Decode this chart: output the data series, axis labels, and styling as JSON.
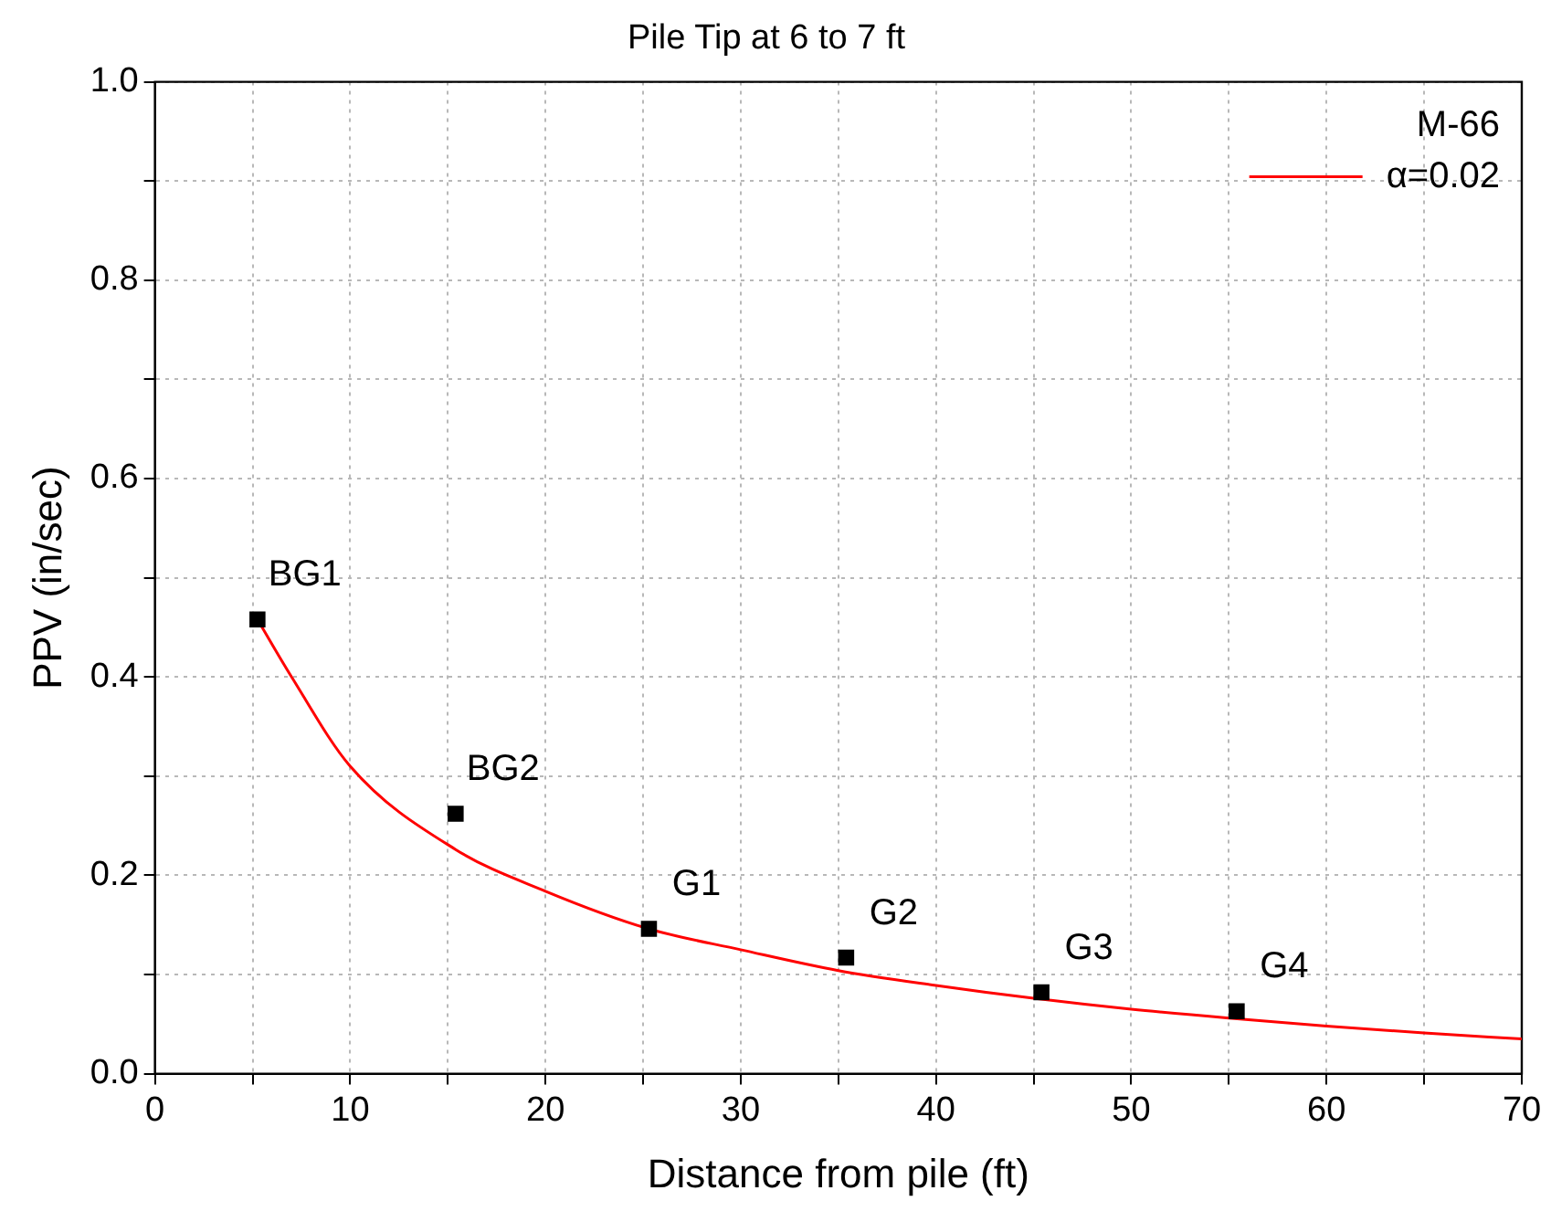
{
  "chart_data": {
    "type": "scatter",
    "title": "Pile Tip at 6 to 7 ft",
    "xlabel": "Distance from pile (ft)",
    "ylabel": "PPV (in/sec)",
    "legend_title": "M-66",
    "legend": "top right",
    "grid": true,
    "marker": "square",
    "xlim": [
      0,
      70
    ],
    "ylim": [
      0,
      1
    ],
    "xticks": [
      0,
      {
        "value": 5,
        "label": null
      },
      10,
      {
        "value": 15,
        "label": null
      },
      20,
      {
        "value": 25,
        "label": null
      },
      30,
      {
        "value": 35,
        "label": null
      },
      40,
      {
        "value": 45,
        "label": null
      },
      50,
      {
        "value": 55,
        "label": null
      },
      60,
      {
        "value": 65,
        "label": null
      },
      70
    ],
    "yticks": [
      {
        "value": 0,
        "label": "0.0"
      },
      {
        "value": 0.1,
        "label": null
      },
      {
        "value": 0.2,
        "label": "0.2"
      },
      {
        "value": 0.3,
        "label": null
      },
      {
        "value": 0.4,
        "label": "0.4"
      },
      {
        "value": 0.5,
        "label": null
      },
      {
        "value": 0.6,
        "label": "0.6"
      },
      {
        "value": 0.7,
        "label": null
      },
      {
        "value": 0.8,
        "label": "0.8"
      },
      {
        "value": 0.9,
        "label": null
      },
      {
        "value": 1,
        "label": "1.0"
      }
    ],
    "series": [
      {
        "type": "scatter",
        "color": "#000000",
        "x": [
          5.25,
          15.4,
          25.3,
          35.4,
          45.4,
          55.4
        ],
        "values": [
          0.458,
          0.262,
          0.146,
          0.117,
          0.082,
          0.063
        ]
      },
      {
        "type": "line",
        "name": "α=0.02",
        "color": "#ff0000",
        "marker": "none",
        "x": [
          5.25,
          7,
          10,
          15.4,
          20,
          25.3,
          30,
          35,
          40,
          45,
          50,
          55,
          60,
          65,
          70
        ],
        "values": [
          0.458,
          0.4,
          0.31,
          0.226,
          0.184,
          0.146,
          0.125,
          0.104,
          0.089,
          0.076,
          0.065,
          0.056,
          0.048,
          0.041,
          0.035
        ]
      }
    ],
    "annotations": [
      {
        "text": "BG1",
        "x": 5.25,
        "y": 0.458
      },
      {
        "text": "BG2",
        "x": 15.4,
        "y": 0.262
      },
      {
        "text": "G1",
        "x": 25.3,
        "y": 0.146
      },
      {
        "text": "G2",
        "x": 35.4,
        "y": 0.117
      },
      {
        "text": "G3",
        "x": 45.4,
        "y": 0.082
      },
      {
        "text": "G4",
        "x": 55.4,
        "y": 0.063
      }
    ]
  }
}
